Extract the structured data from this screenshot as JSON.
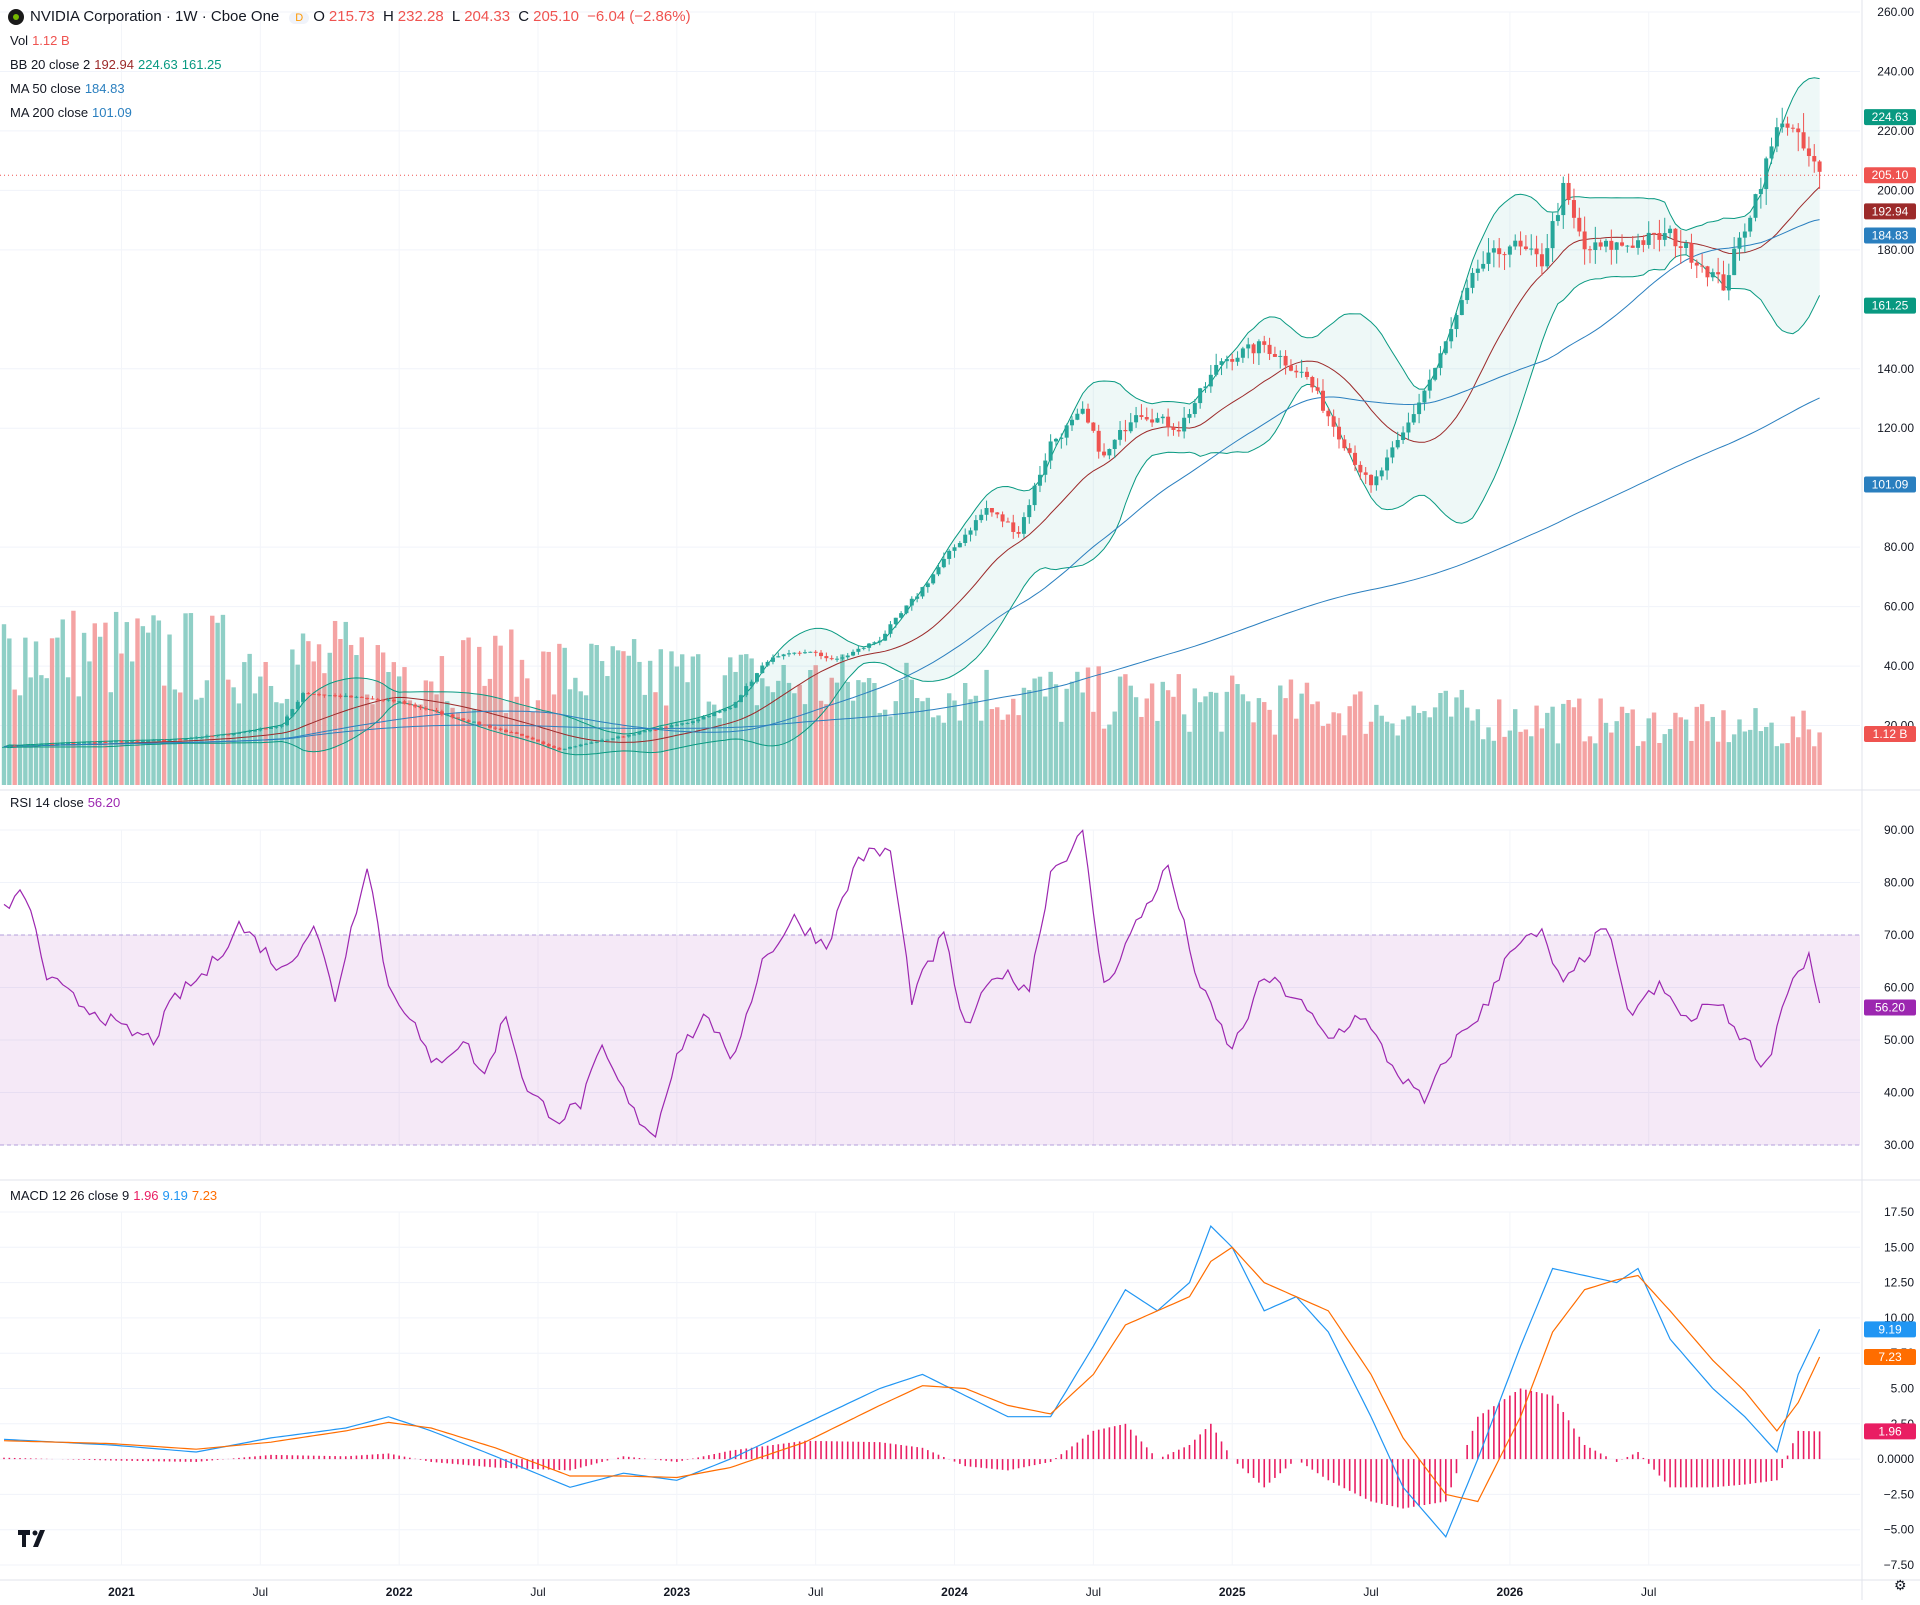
{
  "header": {
    "title": "NVIDIA Corporation · 1W · Cboe One",
    "badge": "D",
    "o_label": "O",
    "o_value": "215.73",
    "h_label": "H",
    "h_value": "232.28",
    "l_label": "L",
    "l_value": "204.33",
    "c_label": "C",
    "c_value": "205.10",
    "change": "−6.04 (−2.86%)"
  },
  "legends": {
    "vol": {
      "label": "Vol",
      "value": "1.12 B"
    },
    "bb": {
      "label": "BB 20 close 2",
      "mid": "192.94",
      "upper": "224.63",
      "lower": "161.25"
    },
    "ma50": {
      "label": "MA 50 close",
      "value": "184.83"
    },
    "ma200": {
      "label": "MA 200 close",
      "value": "101.09"
    },
    "rsi": {
      "label": "RSI 14 close",
      "value": "56.20"
    },
    "macd": {
      "label": "MACD 12 26 close 9",
      "hist": "1.96",
      "macd": "9.19",
      "signal": "7.23"
    }
  },
  "colors": {
    "up": "#26a69a",
    "down": "#ef5350",
    "bb": "#089981",
    "bb_mid": "#9c2a2a",
    "ma50": "#2962ff",
    "ma200": "#2a7fbf",
    "rsi": "#9c27b0",
    "macd": "#2196f3",
    "signal": "#ff6d00",
    "hist": "#e91e63",
    "vol_up": "#8fcfc6",
    "vol_down": "#f4a3a3"
  },
  "x_axis": [
    "2021",
    "Jul",
    "2022",
    "Jul",
    "2023",
    "Jul",
    "2024",
    "Jul",
    "2025",
    "Jul",
    "2026",
    "Jul"
  ],
  "chart_data": [
    {
      "type": "candlestick",
      "title": "NVIDIA Corporation · 1W · Cboe One",
      "ylim": [
        0,
        260
      ],
      "y_ticks": [
        "260.00",
        "240.00",
        "220.00",
        "200.00",
        "180.00",
        "140.00",
        "120.00",
        "80.00",
        "60.00",
        "40.00",
        "20.00"
      ],
      "last_price": "205.10",
      "price_labels": [
        {
          "value": 224.63,
          "text": "224.63"
        },
        {
          "value": 205.1,
          "text": "205.10"
        },
        {
          "value": 192.94,
          "text": "192.94"
        },
        {
          "value": 184.83,
          "text": "184.83"
        },
        {
          "value": 161.25,
          "text": "161.25"
        },
        {
          "value": 101.09,
          "text": "101.09"
        }
      ],
      "volume_label": "1.12 B",
      "anchors": [
        [
          0,
          13
        ],
        [
          12,
          14
        ],
        [
          20,
          14.5
        ],
        [
          30,
          15
        ],
        [
          42,
          17
        ],
        [
          52,
          20
        ],
        [
          56,
          31
        ],
        [
          62,
          30
        ],
        [
          74,
          28
        ],
        [
          86,
          22
        ],
        [
          96,
          17
        ],
        [
          104,
          12
        ],
        [
          112,
          15
        ],
        [
          128,
          21
        ],
        [
          136,
          26
        ],
        [
          143,
          42
        ],
        [
          150,
          45
        ],
        [
          156,
          42
        ],
        [
          164,
          49
        ],
        [
          171,
          64
        ],
        [
          178,
          80
        ],
        [
          184,
          93
        ],
        [
          190,
          85
        ],
        [
          196,
          115
        ],
        [
          202,
          125
        ],
        [
          206,
          110
        ],
        [
          212,
          126
        ],
        [
          220,
          120
        ],
        [
          228,
          143
        ],
        [
          236,
          148
        ],
        [
          244,
          137
        ],
        [
          250,
          118
        ],
        [
          256,
          100
        ],
        [
          262,
          118
        ],
        [
          268,
          140
        ],
        [
          276,
          174
        ],
        [
          282,
          182
        ],
        [
          288,
          176
        ],
        [
          292,
          200
        ],
        [
          296,
          180
        ],
        [
          304,
          182
        ],
        [
          312,
          185
        ],
        [
          318,
          175
        ],
        [
          322,
          168
        ],
        [
          328,
          198
        ],
        [
          333,
          225
        ],
        [
          338,
          211
        ],
        [
          340,
          205
        ]
      ]
    },
    {
      "type": "line",
      "title": "RSI 14 close",
      "ylim": [
        30,
        90
      ],
      "y_ticks": [
        "90.00",
        "80.00",
        "70.00",
        "60.00",
        "50.00",
        "40.00",
        "30.00"
      ],
      "last": "56.20",
      "anchors": [
        [
          0,
          75
        ],
        [
          4,
          78
        ],
        [
          8,
          62
        ],
        [
          14,
          57
        ],
        [
          18,
          55
        ],
        [
          22,
          52
        ],
        [
          28,
          50
        ],
        [
          32,
          58
        ],
        [
          38,
          63
        ],
        [
          44,
          72
        ],
        [
          48,
          68
        ],
        [
          52,
          63
        ],
        [
          58,
          72
        ],
        [
          62,
          58
        ],
        [
          68,
          84
        ],
        [
          72,
          60
        ],
        [
          76,
          55
        ],
        [
          80,
          45
        ],
        [
          86,
          50
        ],
        [
          90,
          43
        ],
        [
          94,
          55
        ],
        [
          98,
          40
        ],
        [
          104,
          35
        ],
        [
          108,
          38
        ],
        [
          112,
          48
        ],
        [
          118,
          36
        ],
        [
          122,
          32
        ],
        [
          126,
          48
        ],
        [
          132,
          55
        ],
        [
          136,
          45
        ],
        [
          142,
          65
        ],
        [
          148,
          73
        ],
        [
          154,
          68
        ],
        [
          160,
          85
        ],
        [
          166,
          86
        ],
        [
          170,
          58
        ],
        [
          176,
          70
        ],
        [
          180,
          52
        ],
        [
          186,
          63
        ],
        [
          192,
          60
        ],
        [
          196,
          82
        ],
        [
          202,
          89
        ],
        [
          206,
          60
        ],
        [
          212,
          72
        ],
        [
          218,
          83
        ],
        [
          224,
          60
        ],
        [
          230,
          48
        ],
        [
          236,
          62
        ],
        [
          242,
          58
        ],
        [
          248,
          50
        ],
        [
          254,
          55
        ],
        [
          260,
          45
        ],
        [
          266,
          38
        ],
        [
          272,
          50
        ],
        [
          278,
          57
        ],
        [
          282,
          68
        ],
        [
          288,
          70
        ],
        [
          292,
          60
        ],
        [
          296,
          66
        ],
        [
          300,
          72
        ],
        [
          304,
          55
        ],
        [
          310,
          60
        ],
        [
          316,
          53
        ],
        [
          320,
          58
        ],
        [
          326,
          50
        ],
        [
          330,
          45
        ],
        [
          334,
          60
        ],
        [
          338,
          66
        ],
        [
          340,
          56
        ]
      ],
      "overbought": 70,
      "oversold": 30
    },
    {
      "type": "line",
      "title": "MACD 12 26 close 9",
      "ylim": [
        -7.5,
        17.5
      ],
      "y_ticks": [
        "17.50",
        "15.00",
        "12.50",
        "10.00",
        "7.50",
        "5.00",
        "2.50",
        "0.0000",
        "−2.50",
        "−5.00",
        "−7.50"
      ],
      "series": [
        {
          "name": "MACD",
          "last": "9.19",
          "anchors": [
            [
              0,
              1.4
            ],
            [
              20,
              1.0
            ],
            [
              36,
              0.5
            ],
            [
              50,
              1.5
            ],
            [
              64,
              2.2
            ],
            [
              72,
              3.0
            ],
            [
              80,
              2.0
            ],
            [
              92,
              0.2
            ],
            [
              106,
              -2.0
            ],
            [
              116,
              -1.0
            ],
            [
              126,
              -1.5
            ],
            [
              136,
              0.0
            ],
            [
              150,
              2.5
            ],
            [
              164,
              5.0
            ],
            [
              172,
              6.0
            ],
            [
              180,
              4.5
            ],
            [
              188,
              3.0
            ],
            [
              196,
              3.0
            ],
            [
              204,
              8.0
            ],
            [
              210,
              12.0
            ],
            [
              216,
              10.5
            ],
            [
              222,
              12.5
            ],
            [
              226,
              16.5
            ],
            [
              230,
              15.0
            ],
            [
              236,
              10.5
            ],
            [
              242,
              11.5
            ],
            [
              248,
              9.0
            ],
            [
              256,
              3.0
            ],
            [
              262,
              -2.0
            ],
            [
              270,
              -5.5
            ],
            [
              276,
              0.0
            ],
            [
              284,
              8.0
            ],
            [
              290,
              13.5
            ],
            [
              296,
              13.0
            ],
            [
              302,
              12.5
            ],
            [
              306,
              13.5
            ],
            [
              312,
              8.5
            ],
            [
              320,
              5.0
            ],
            [
              326,
              3.0
            ],
            [
              332,
              0.5
            ],
            [
              336,
              6.0
            ],
            [
              340,
              9.19
            ]
          ]
        },
        {
          "name": "Signal",
          "last": "7.23",
          "anchors": [
            [
              0,
              1.3
            ],
            [
              20,
              1.1
            ],
            [
              36,
              0.7
            ],
            [
              50,
              1.2
            ],
            [
              64,
              2.0
            ],
            [
              72,
              2.6
            ],
            [
              80,
              2.2
            ],
            [
              92,
              0.8
            ],
            [
              106,
              -1.2
            ],
            [
              116,
              -1.2
            ],
            [
              126,
              -1.3
            ],
            [
              136,
              -0.6
            ],
            [
              150,
              1.2
            ],
            [
              164,
              3.8
            ],
            [
              172,
              5.2
            ],
            [
              180,
              5.0
            ],
            [
              188,
              3.8
            ],
            [
              196,
              3.2
            ],
            [
              204,
              6.0
            ],
            [
              210,
              9.5
            ],
            [
              216,
              10.5
            ],
            [
              222,
              11.5
            ],
            [
              226,
              14.0
            ],
            [
              230,
              15.0
            ],
            [
              236,
              12.5
            ],
            [
              242,
              11.5
            ],
            [
              248,
              10.5
            ],
            [
              256,
              6.0
            ],
            [
              262,
              1.5
            ],
            [
              270,
              -2.5
            ],
            [
              276,
              -3.0
            ],
            [
              284,
              3.0
            ],
            [
              290,
              9.0
            ],
            [
              296,
              12.0
            ],
            [
              302,
              12.7
            ],
            [
              306,
              13.0
            ],
            [
              312,
              10.5
            ],
            [
              320,
              7.0
            ],
            [
              326,
              4.8
            ],
            [
              332,
              2.0
            ],
            [
              336,
              4.0
            ],
            [
              340,
              7.23
            ]
          ]
        }
      ],
      "histogram_last": "1.96"
    }
  ]
}
